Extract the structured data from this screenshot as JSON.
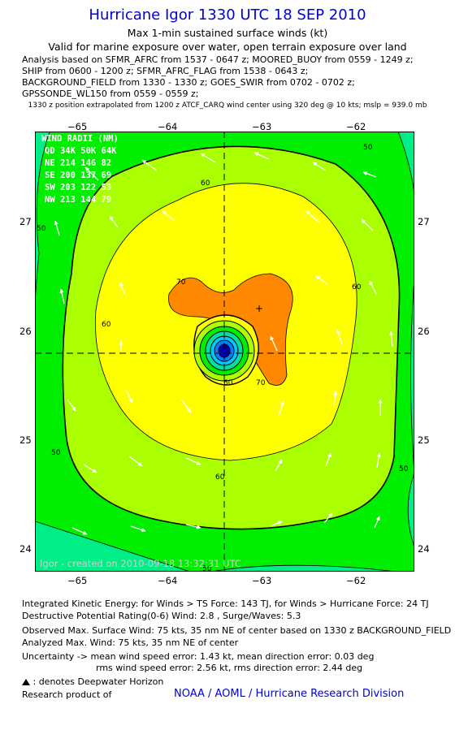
{
  "title": "Hurricane Igor 1330 UTC 18 SEP 2010",
  "subtitle": "Max 1-min sustained surface winds (kt)",
  "valid_line": "Valid for marine exposure over water, open terrain exposure over land",
  "analysis_lines": [
    "Analysis based on SFMR_AFRC from 1537 - 0647 z; MOORED_BUOY from 0559 - 1249 z;",
    "SHIP from 0600 - 1200 z; SFMR_AFRC_FLAG from 1538 - 0643 z;",
    "BACKGROUND_FIELD from 1330 - 1330 z; GOES_SWIR from 0702 - 0702 z;",
    "GPSSONDE_WL150 from 0559 - 0559 z;"
  ],
  "position_note": "1330 z position extrapolated from 1200 z ATCF_CARQ wind center using 320 deg @ 10 kts; mslp = 939.0 mb",
  "x_ticks": [
    "−65",
    "−64",
    "−63",
    "−62"
  ],
  "y_ticks": [
    "27",
    "26",
    "25",
    "24"
  ],
  "wind_radii": {
    "header": "WIND RADII (NM)",
    "cols": "QD  34K  50K  64K",
    "rows": [
      "NE  214  146   82",
      "SE  200  137   69",
      "SW  203  122   53",
      "NW  213  144   79"
    ]
  },
  "contour_labels": [
    "60",
    "60",
    "60",
    "60",
    "60",
    "70",
    "70",
    "50",
    "50",
    "50",
    "50",
    "50"
  ],
  "credit": "Igor - created on 2010-09-18 13:32:31 UTC",
  "ike_line": "Integrated Kinetic Energy:  for Winds > TS Force: 143 TJ,  for Winds > Hurricane Force: 24 TJ",
  "dpr_line": "Destructive Potential Rating(0-6)   Wind: 2.8 , Surge/Waves: 5.3",
  "observed_line": "Observed Max. Surface Wind: 75 kts, 35 nm NE of center based on 1330 z BACKGROUND_FIELD",
  "analyzed_line": "Analyzed Max. Wind: 75 kts, 35 nm NE of center",
  "uncertainty_line1": "Uncertainty -> mean wind speed error: 1.43 kt,   mean direction error: 0.03 deg",
  "uncertainty_line2": "rms wind speed error: 2.56 kt,   rms direction error: 2.44 deg",
  "deepwater_note": ": denotes Deepwater Horizon",
  "research_label": "Research product of",
  "noaa": "NOAA / AOML / Hurricane Research Division",
  "colors": {
    "title": "#0000dd",
    "band_35_40": "#00ee88",
    "band_40_50": "#00ee00",
    "band_50_60": "#aaff00",
    "band_60_70": "#ffff00",
    "band_70_80": "#ff8800",
    "eyewall": "#0000aa",
    "arrow": "#ffffff"
  }
}
